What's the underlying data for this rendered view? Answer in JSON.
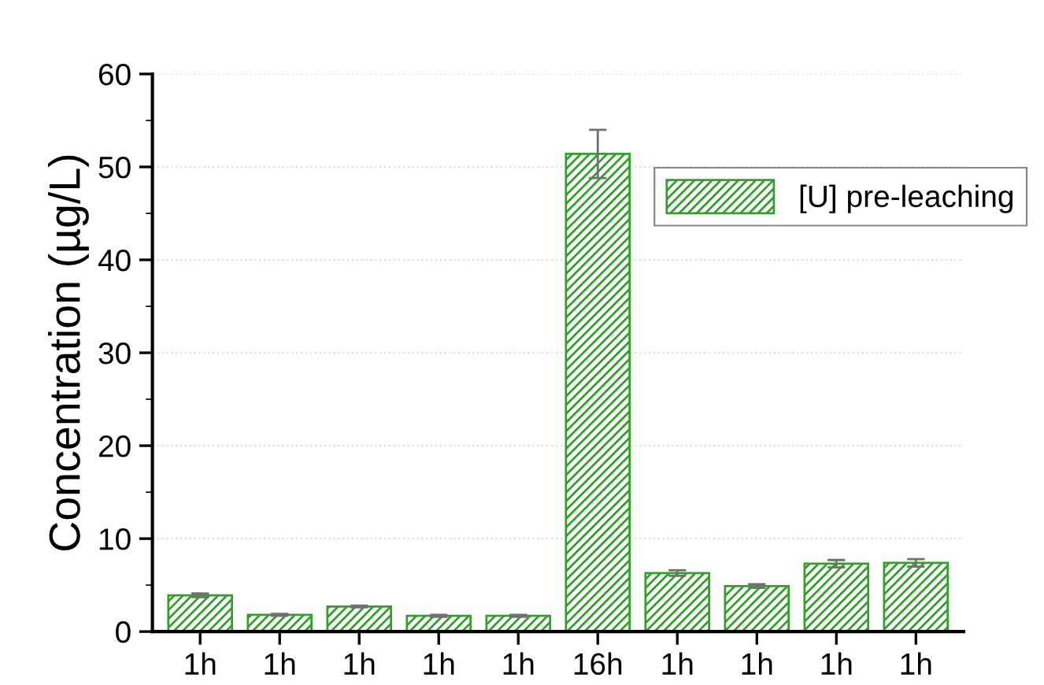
{
  "chart_data": {
    "type": "bar",
    "ylabel": "Concentration (µg/L)",
    "categories": [
      "1h",
      "1h",
      "1h",
      "1h",
      "1h",
      "16h",
      "1h",
      "1h",
      "1h",
      "1h"
    ],
    "series": [
      {
        "name": "[U] pre-leaching",
        "color": "#33a02c",
        "values": [
          3.9,
          1.8,
          2.7,
          1.7,
          1.7,
          51.4,
          6.3,
          4.9,
          7.3,
          7.4
        ],
        "errors": [
          0.2,
          0.1,
          0.1,
          0.1,
          0.1,
          2.6,
          0.3,
          0.2,
          0.4,
          0.4
        ]
      }
    ],
    "ylim": [
      0,
      60
    ],
    "yticks": [
      0,
      10,
      20,
      30,
      40,
      50,
      60
    ],
    "grid": "y",
    "legend": "right"
  }
}
